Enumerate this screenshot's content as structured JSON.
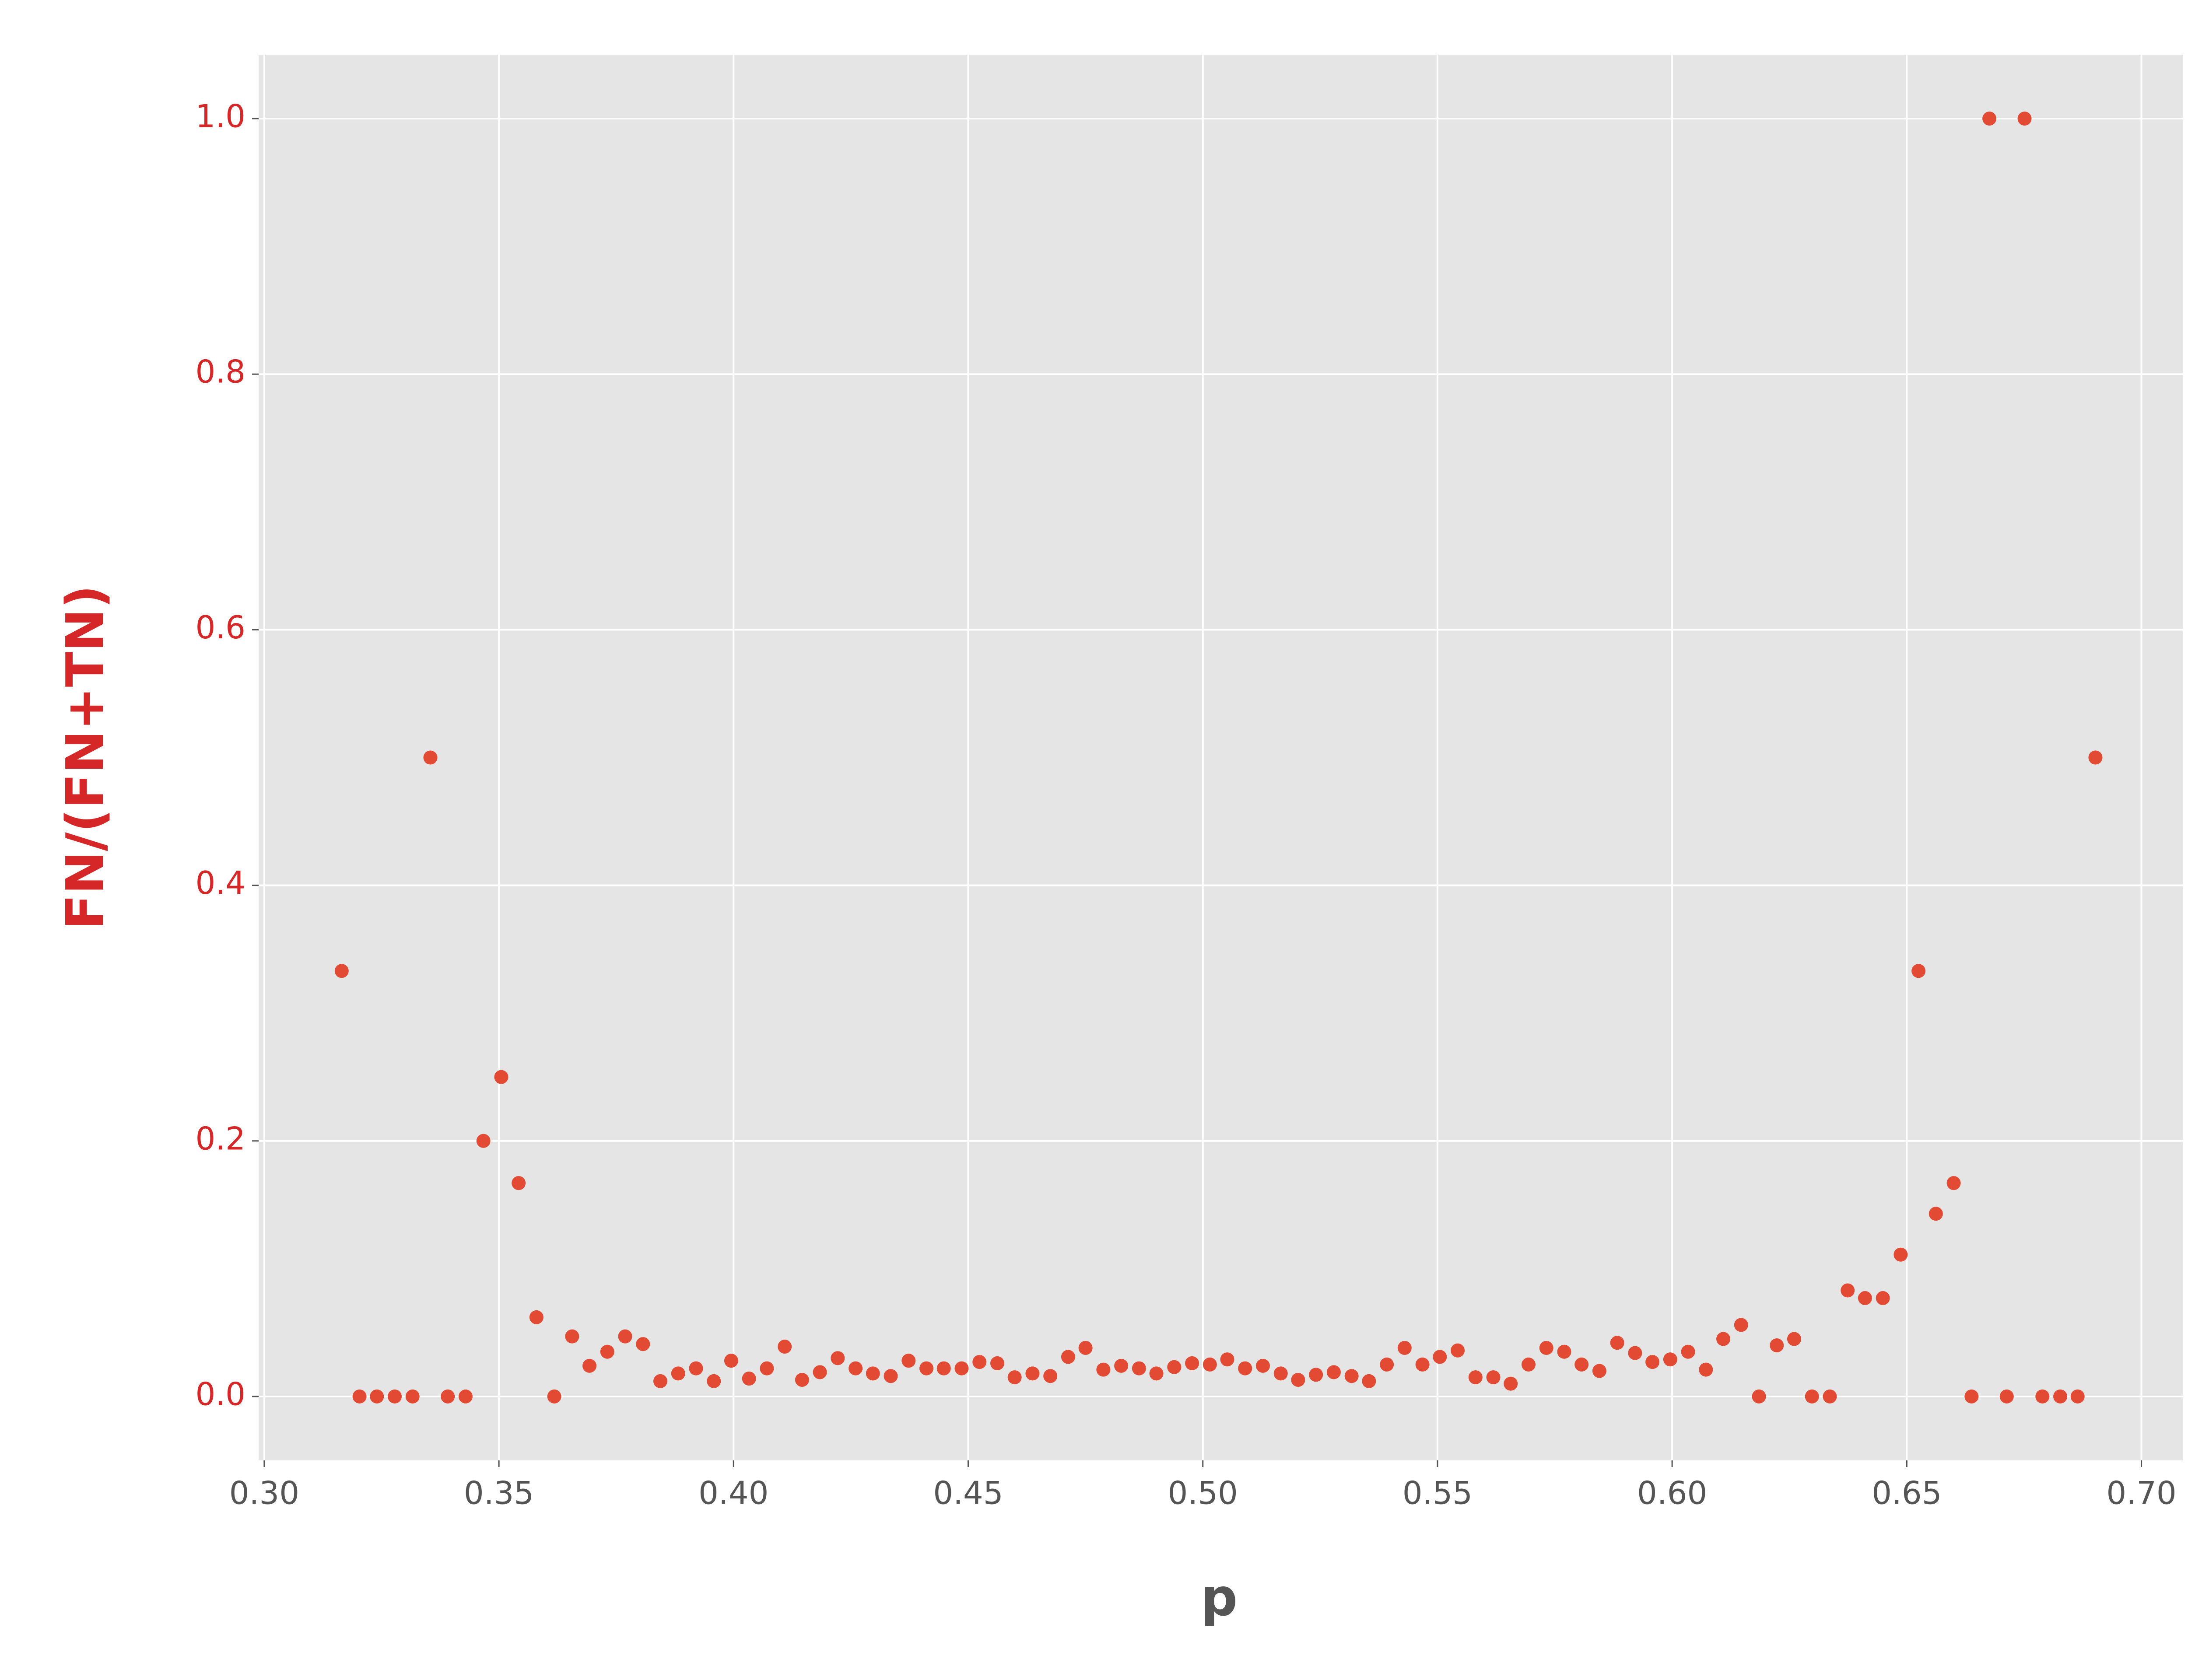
{
  "chart_data": {
    "type": "scatter",
    "xlabel": "p",
    "ylabel": "FN/(FN+TN)",
    "x": [
      0.3165,
      0.3203,
      0.324,
      0.3278,
      0.3316,
      0.3354,
      0.3391,
      0.3429,
      0.3467,
      0.3505,
      0.3542,
      0.358,
      0.3618,
      0.3656,
      0.3693,
      0.3731,
      0.3769,
      0.3807,
      0.3844,
      0.3882,
      0.392,
      0.3958,
      0.3995,
      0.4033,
      0.4071,
      0.4109,
      0.4146,
      0.4184,
      0.4222,
      0.426,
      0.4297,
      0.4335,
      0.4373,
      0.4411,
      0.4448,
      0.4486,
      0.4524,
      0.4562,
      0.4599,
      0.4637,
      0.4675,
      0.4713,
      0.475,
      0.4788,
      0.4826,
      0.4864,
      0.4901,
      0.4939,
      0.4977,
      0.5015,
      0.5052,
      0.509,
      0.5128,
      0.5166,
      0.5203,
      0.5241,
      0.5279,
      0.5317,
      0.5354,
      0.5392,
      0.543,
      0.5468,
      0.5505,
      0.5543,
      0.5581,
      0.5619,
      0.5656,
      0.5694,
      0.5732,
      0.577,
      0.5807,
      0.5845,
      0.5883,
      0.5921,
      0.5958,
      0.5996,
      0.6034,
      0.6072,
      0.6109,
      0.6147,
      0.6185,
      0.6223,
      0.626,
      0.6298,
      0.6336,
      0.6374,
      0.6411,
      0.6449,
      0.6487,
      0.6525,
      0.6562,
      0.66,
      0.6638,
      0.6676,
      0.6713,
      0.6751,
      0.6789,
      0.6827,
      0.6864,
      0.6902
    ],
    "values": [
      0.333,
      0,
      0,
      0,
      0,
      0.5,
      0,
      0,
      0.2,
      0.25,
      0.167,
      0.062,
      0,
      0.047,
      0.024,
      0.035,
      0.047,
      0.041,
      0.012,
      0.018,
      0.022,
      0.012,
      0.028,
      0.014,
      0.022,
      0.039,
      0.013,
      0.019,
      0.03,
      0.022,
      0.018,
      0.016,
      0.028,
      0.022,
      0.022,
      0.022,
      0.027,
      0.026,
      0.015,
      0.018,
      0.016,
      0.031,
      0.038,
      0.021,
      0.024,
      0.022,
      0.018,
      0.023,
      0.026,
      0.025,
      0.029,
      0.022,
      0.024,
      0.018,
      0.013,
      0.017,
      0.019,
      0.016,
      0.012,
      0.025,
      0.038,
      0.025,
      0.031,
      0.036,
      0.015,
      0.015,
      0.01,
      0.025,
      0.038,
      0.035,
      0.025,
      0.02,
      0.042,
      0.034,
      0.027,
      0.029,
      0.035,
      0.021,
      0.045,
      0.056,
      0,
      0.04,
      0.045,
      0,
      0,
      0.083,
      0.077,
      0.077,
      0.111,
      0.333,
      0.143,
      0.167,
      0,
      1,
      0,
      1,
      0,
      0,
      0,
      0.5
    ],
    "color": "#e24a33",
    "ylabel_color": "#d62728",
    "xlim": [
      0.2988,
      0.7089
    ],
    "ylim": [
      -0.05,
      1.05
    ],
    "xticks": [
      {
        "value": 0.3,
        "label": "0.30"
      },
      0.35,
      {
        "value": 0.4,
        "label": "0.40"
      },
      0.45,
      {
        "value": 0.5,
        "label": "0.50"
      },
      0.55,
      {
        "value": 0.6,
        "label": "0.60"
      },
      0.65,
      {
        "value": 0.7,
        "label": "0.70"
      }
    ],
    "yticks": [
      {
        "value": 0,
        "label": "0.0"
      },
      0.2,
      0.4,
      0.6,
      0.8,
      {
        "value": 1,
        "label": "1.0"
      }
    ],
    "grid": true
  }
}
